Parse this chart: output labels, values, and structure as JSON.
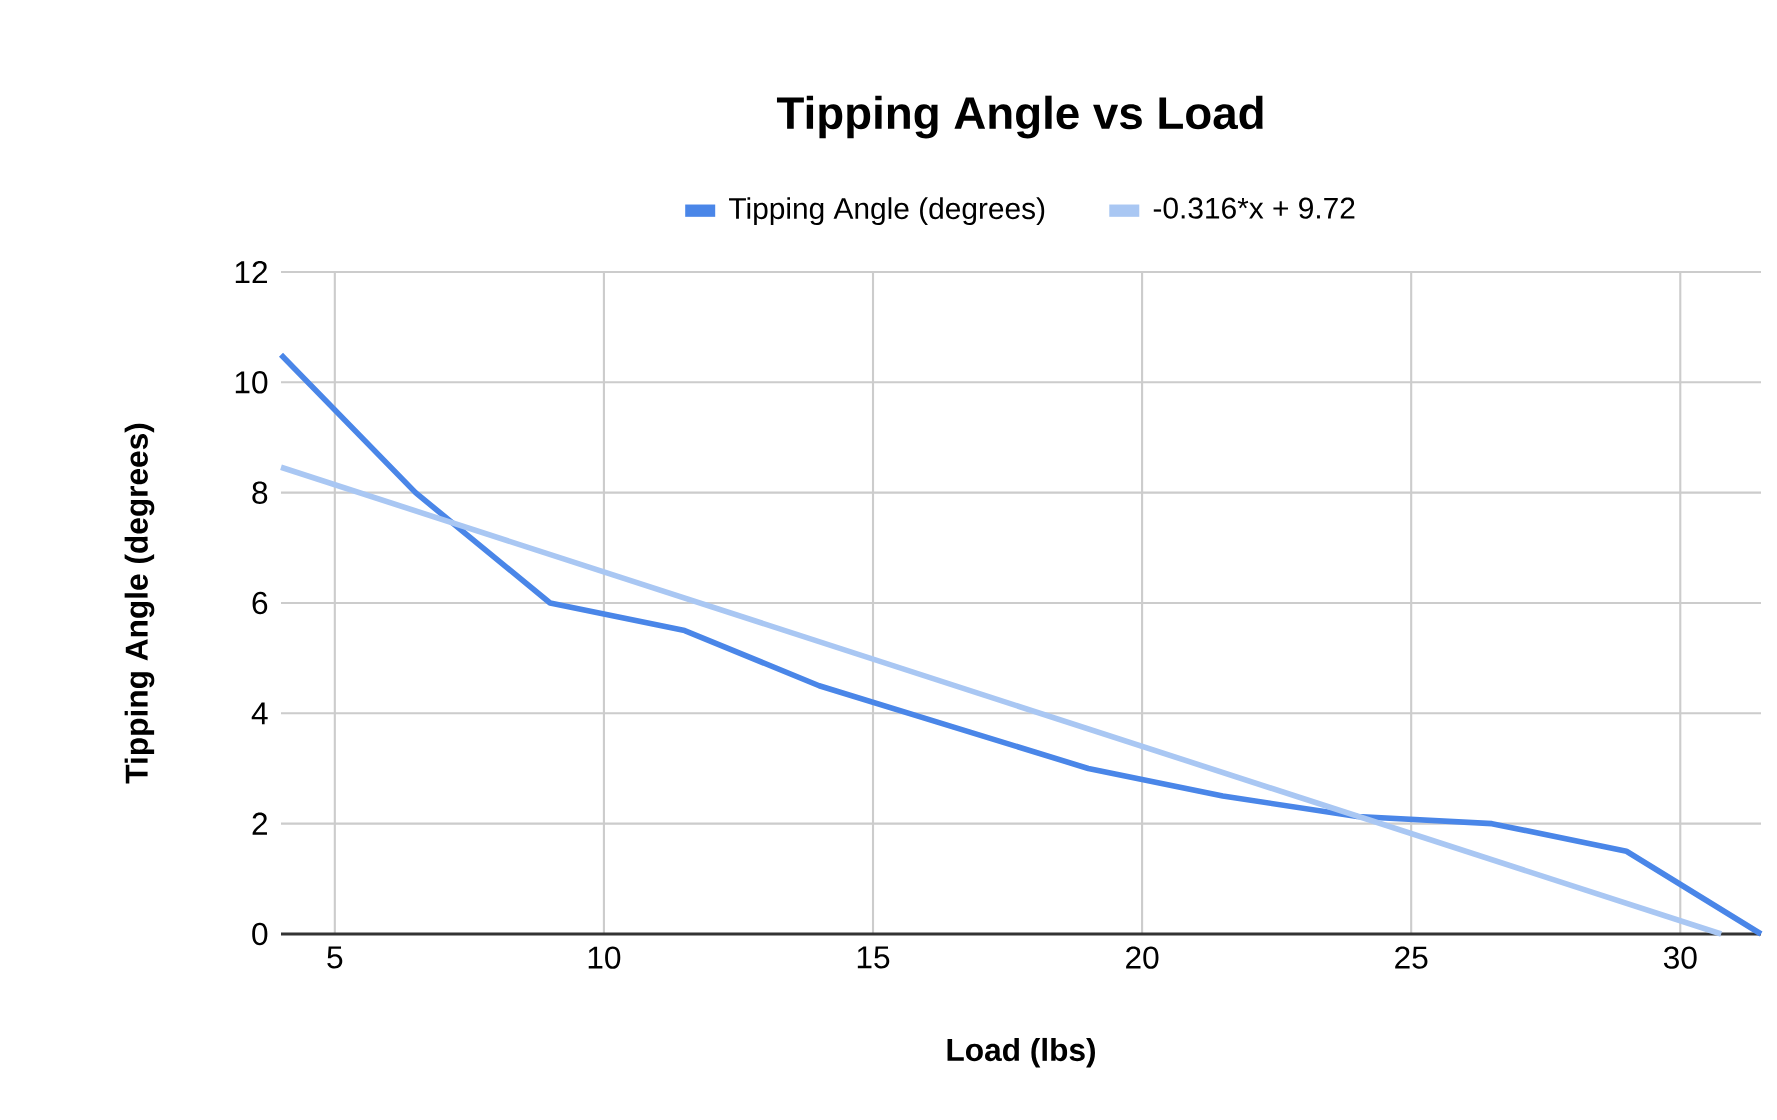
{
  "chart_data": {
    "type": "line",
    "title": "Tipping Angle vs Load",
    "xlabel": "Load (lbs)",
    "ylabel": "Tipping Angle (degrees)",
    "series": [
      {
        "name": "Tipping Angle (degrees)",
        "color": "#4a86e8",
        "x": [
          4,
          6.5,
          9,
          11.5,
          14,
          16.5,
          19,
          21.5,
          24,
          26.5,
          29,
          31.5
        ],
        "values": [
          10.5,
          8,
          6,
          5.5,
          4.5,
          3.75,
          3,
          2.5,
          2.13,
          2,
          1.5,
          0
        ]
      },
      {
        "name": "-0.316*x + 9.72",
        "color": "#a9c7f3",
        "x": [
          4,
          30.76
        ],
        "values": [
          8.46,
          0
        ]
      }
    ],
    "xlim": [
      4,
      31.5
    ],
    "ylim": [
      0,
      12
    ],
    "xticks": [
      5,
      10,
      15,
      20,
      25,
      30
    ],
    "yticks": [
      0,
      2,
      4,
      6,
      8,
      10,
      12
    ],
    "grid": true,
    "legend": "top",
    "marker": "none",
    "line_style": "solid"
  }
}
